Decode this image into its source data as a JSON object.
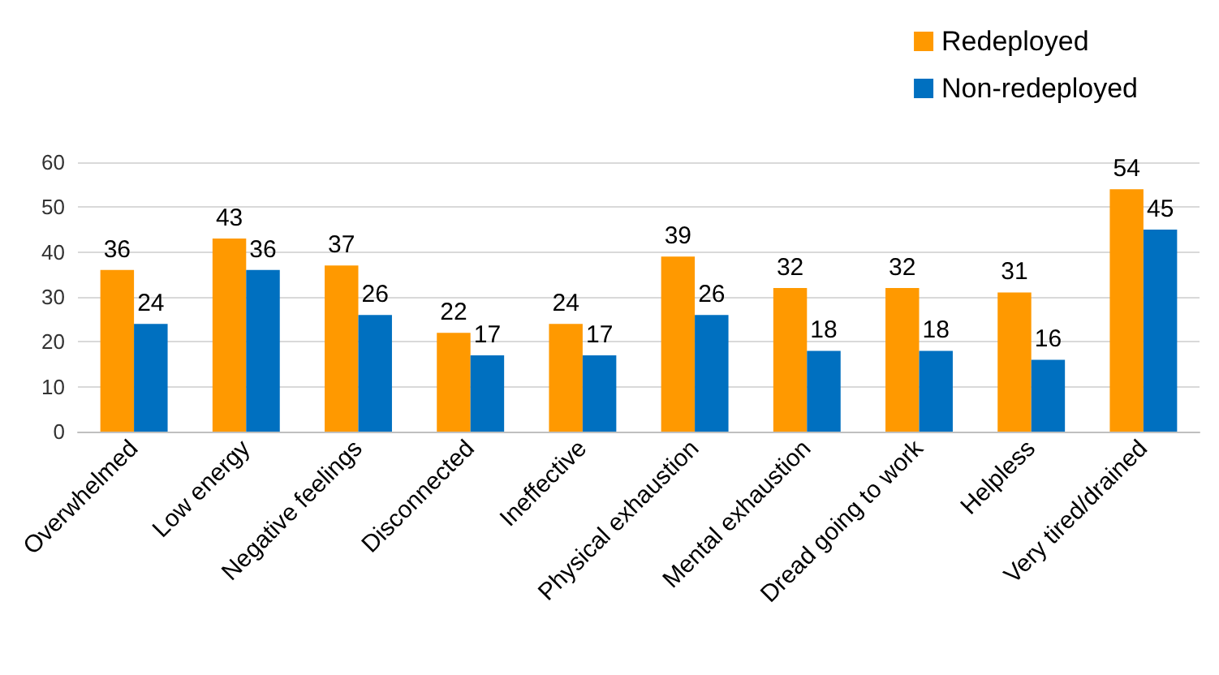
{
  "chart_data": {
    "type": "bar",
    "categories": [
      "Overwhelmed",
      "Low energy",
      "Negative feelings",
      "Disconnected",
      "Ineffective",
      "Physical exhaustion",
      "Mental exhaustion",
      "Dread going to work",
      "Helpless",
      "Very tired/drained"
    ],
    "series": [
      {
        "name": "Redeployed",
        "color": "#ff9900",
        "values": [
          36,
          43,
          37,
          22,
          24,
          39,
          32,
          32,
          31,
          54
        ]
      },
      {
        "name": "Non-redeployed",
        "color": "#0070c0",
        "values": [
          24,
          36,
          26,
          17,
          17,
          26,
          18,
          18,
          16,
          45
        ]
      }
    ],
    "ylim": [
      0,
      60
    ],
    "yticks": [
      0,
      10,
      20,
      30,
      40,
      50,
      60
    ],
    "grid": "y",
    "legend": "top right",
    "data_labels": true
  }
}
